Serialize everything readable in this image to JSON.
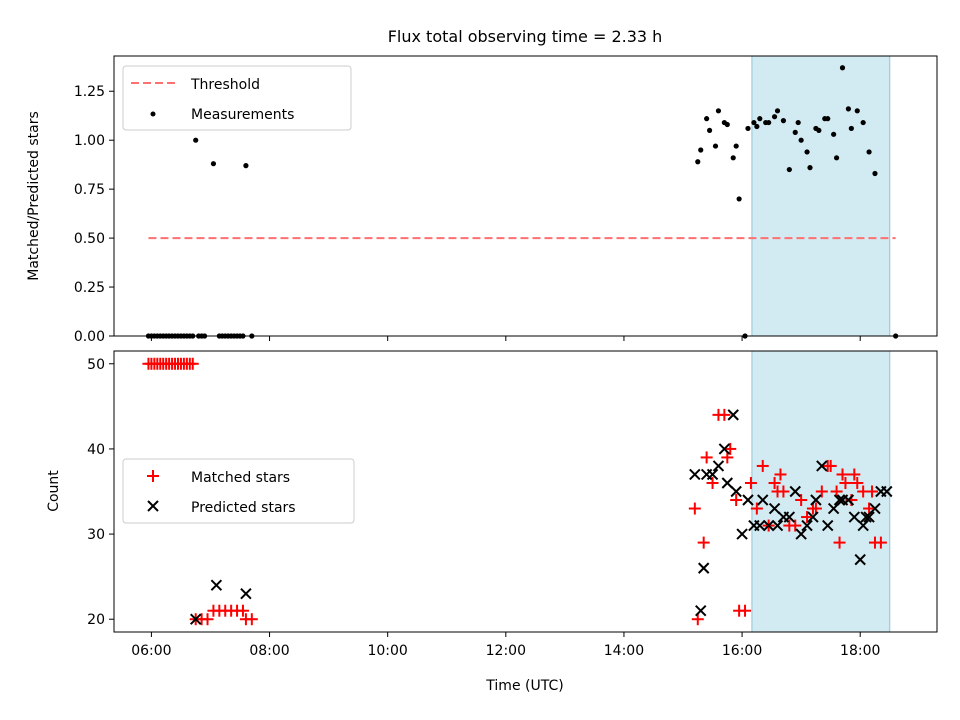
{
  "title": "Flux total observing time = 2.33 h",
  "colors": {
    "threshold": "#ff7070",
    "measurement": "#000000",
    "matched": "#ff0000",
    "predicted": "#000000",
    "span": "#add8e6"
  },
  "chart_data": [
    {
      "type": "scatter",
      "ylabel": "Matched/Predicted stars",
      "ylim": [
        0,
        1.43
      ],
      "y_ticks": [
        "0.00",
        "0.25",
        "0.50",
        "0.75",
        "1.00",
        "1.25"
      ],
      "xlim": [
        "05:22",
        "19:18"
      ],
      "grid": false,
      "legend_position": "upper left",
      "shaded_interval": [
        "16:10",
        "18:30"
      ],
      "threshold": {
        "name": "Threshold",
        "value": 0.5,
        "x": [
          "05:57",
          "18:36"
        ]
      },
      "series": [
        {
          "name": "Measurements",
          "points": [
            [
              "05:57",
              0
            ],
            [
              "06:00",
              0
            ],
            [
              "06:03",
              0
            ],
            [
              "06:06",
              0
            ],
            [
              "06:09",
              0
            ],
            [
              "06:12",
              0
            ],
            [
              "06:15",
              0
            ],
            [
              "06:18",
              0
            ],
            [
              "06:21",
              0
            ],
            [
              "06:24",
              0
            ],
            [
              "06:27",
              0
            ],
            [
              "06:30",
              0
            ],
            [
              "06:33",
              0
            ],
            [
              "06:36",
              0
            ],
            [
              "06:39",
              0
            ],
            [
              "06:42",
              0
            ],
            [
              "06:45",
              1.0
            ],
            [
              "06:48",
              0
            ],
            [
              "06:51",
              0
            ],
            [
              "06:54",
              0
            ],
            [
              "07:03",
              0.88
            ],
            [
              "07:09",
              0
            ],
            [
              "07:12",
              0
            ],
            [
              "07:15",
              0
            ],
            [
              "07:18",
              0
            ],
            [
              "07:21",
              0
            ],
            [
              "07:24",
              0
            ],
            [
              "07:27",
              0
            ],
            [
              "07:30",
              0
            ],
            [
              "07:33",
              0
            ],
            [
              "07:36",
              0.87
            ],
            [
              "07:42",
              0
            ],
            [
              "15:15",
              0.89
            ],
            [
              "15:18",
              0.95
            ],
            [
              "15:24",
              1.11
            ],
            [
              "15:27",
              1.05
            ],
            [
              "15:33",
              0.97
            ],
            [
              "15:36",
              1.15
            ],
            [
              "15:42",
              1.09
            ],
            [
              "15:45",
              1.08
            ],
            [
              "15:51",
              0.91
            ],
            [
              "15:54",
              0.97
            ],
            [
              "15:57",
              0.7
            ],
            [
              "16:03",
              0
            ],
            [
              "16:06",
              1.06
            ],
            [
              "16:12",
              1.09
            ],
            [
              "16:15",
              1.07
            ],
            [
              "16:18",
              1.11
            ],
            [
              "16:24",
              1.09
            ],
            [
              "16:27",
              1.09
            ],
            [
              "16:33",
              1.12
            ],
            [
              "16:36",
              1.15
            ],
            [
              "16:42",
              1.1
            ],
            [
              "16:48",
              0.85
            ],
            [
              "16:54",
              1.04
            ],
            [
              "16:57",
              1.09
            ],
            [
              "17:00",
              1.0
            ],
            [
              "17:06",
              0.94
            ],
            [
              "17:09",
              0.86
            ],
            [
              "17:15",
              1.06
            ],
            [
              "17:18",
              1.05
            ],
            [
              "17:24",
              1.11
            ],
            [
              "17:27",
              1.11
            ],
            [
              "17:33",
              1.03
            ],
            [
              "17:36",
              0.91
            ],
            [
              "17:42",
              1.37
            ],
            [
              "17:48",
              1.16
            ],
            [
              "17:51",
              1.06
            ],
            [
              "17:57",
              1.15
            ],
            [
              "18:03",
              1.09
            ],
            [
              "18:09",
              0.94
            ],
            [
              "18:15",
              0.83
            ],
            [
              "18:36",
              0
            ]
          ]
        }
      ]
    },
    {
      "type": "scatter",
      "ylabel": "Count",
      "xlabel": "Time (UTC)",
      "ylim": [
        18.5,
        51.5
      ],
      "y_ticks": [
        "20",
        "30",
        "40",
        "50"
      ],
      "x_ticks": [
        "06:00",
        "08:00",
        "10:00",
        "12:00",
        "14:00",
        "16:00",
        "18:00"
      ],
      "xlim": [
        "05:22",
        "19:18"
      ],
      "grid": false,
      "legend_position": "center left",
      "shaded_interval": [
        "16:10",
        "18:30"
      ],
      "series": [
        {
          "name": "Matched stars",
          "marker": "+",
          "points": [
            [
              "05:57",
              50
            ],
            [
              "06:00",
              50
            ],
            [
              "06:03",
              50
            ],
            [
              "06:06",
              50
            ],
            [
              "06:09",
              50
            ],
            [
              "06:12",
              50
            ],
            [
              "06:15",
              50
            ],
            [
              "06:18",
              50
            ],
            [
              "06:21",
              50
            ],
            [
              "06:24",
              50
            ],
            [
              "06:27",
              50
            ],
            [
              "06:30",
              50
            ],
            [
              "06:33",
              50
            ],
            [
              "06:36",
              50
            ],
            [
              "06:39",
              50
            ],
            [
              "06:42",
              50
            ],
            [
              "06:45",
              20
            ],
            [
              "06:51",
              20
            ],
            [
              "06:57",
              20
            ],
            [
              "07:03",
              21
            ],
            [
              "07:09",
              21
            ],
            [
              "07:15",
              21
            ],
            [
              "07:21",
              21
            ],
            [
              "07:27",
              21
            ],
            [
              "07:33",
              21
            ],
            [
              "07:36",
              20
            ],
            [
              "07:42",
              20
            ],
            [
              "15:12",
              33
            ],
            [
              "15:15",
              20
            ],
            [
              "15:21",
              29
            ],
            [
              "15:24",
              39
            ],
            [
              "15:30",
              36
            ],
            [
              "15:36",
              44
            ],
            [
              "15:42",
              44
            ],
            [
              "15:45",
              39
            ],
            [
              "15:48",
              40
            ],
            [
              "15:54",
              34
            ],
            [
              "15:57",
              21
            ],
            [
              "16:03",
              21
            ],
            [
              "16:09",
              36
            ],
            [
              "16:15",
              33
            ],
            [
              "16:21",
              38
            ],
            [
              "16:27",
              31
            ],
            [
              "16:33",
              36
            ],
            [
              "16:36",
              35
            ],
            [
              "16:39",
              37
            ],
            [
              "16:42",
              35
            ],
            [
              "16:48",
              31
            ],
            [
              "16:54",
              31
            ],
            [
              "17:00",
              34
            ],
            [
              "17:06",
              32
            ],
            [
              "17:12",
              33
            ],
            [
              "17:15",
              33
            ],
            [
              "17:21",
              35
            ],
            [
              "17:27",
              38
            ],
            [
              "17:30",
              38
            ],
            [
              "17:36",
              35
            ],
            [
              "17:39",
              29
            ],
            [
              "17:42",
              37
            ],
            [
              "17:45",
              36
            ],
            [
              "17:51",
              34
            ],
            [
              "17:54",
              37
            ],
            [
              "17:57",
              36
            ],
            [
              "18:03",
              35
            ],
            [
              "18:09",
              33
            ],
            [
              "18:12",
              35
            ],
            [
              "18:15",
              29
            ],
            [
              "18:21",
              29
            ]
          ]
        },
        {
          "name": "Predicted stars",
          "marker": "x",
          "points": [
            [
              "06:45",
              20
            ],
            [
              "07:06",
              24
            ],
            [
              "07:36",
              23
            ],
            [
              "15:12",
              37
            ],
            [
              "15:18",
              21
            ],
            [
              "15:21",
              26
            ],
            [
              "15:24",
              37
            ],
            [
              "15:30",
              37
            ],
            [
              "15:36",
              38
            ],
            [
              "15:42",
              40
            ],
            [
              "15:45",
              36
            ],
            [
              "15:51",
              44
            ],
            [
              "15:54",
              35
            ],
            [
              "16:00",
              30
            ],
            [
              "16:06",
              34
            ],
            [
              "16:12",
              31
            ],
            [
              "16:18",
              31
            ],
            [
              "16:21",
              34
            ],
            [
              "16:27",
              31
            ],
            [
              "16:33",
              33
            ],
            [
              "16:36",
              31
            ],
            [
              "16:42",
              32
            ],
            [
              "16:48",
              32
            ],
            [
              "16:54",
              35
            ],
            [
              "17:00",
              30
            ],
            [
              "17:06",
              31
            ],
            [
              "17:12",
              32
            ],
            [
              "17:15",
              34
            ],
            [
              "17:21",
              38
            ],
            [
              "17:27",
              31
            ],
            [
              "17:33",
              33
            ],
            [
              "17:39",
              34
            ],
            [
              "17:42",
              34
            ],
            [
              "17:48",
              34
            ],
            [
              "17:54",
              32
            ],
            [
              "18:00",
              27
            ],
            [
              "18:03",
              31
            ],
            [
              "18:06",
              32
            ],
            [
              "18:09",
              32
            ],
            [
              "18:15",
              33
            ],
            [
              "18:21",
              35
            ],
            [
              "18:27",
              35
            ]
          ]
        }
      ]
    }
  ]
}
